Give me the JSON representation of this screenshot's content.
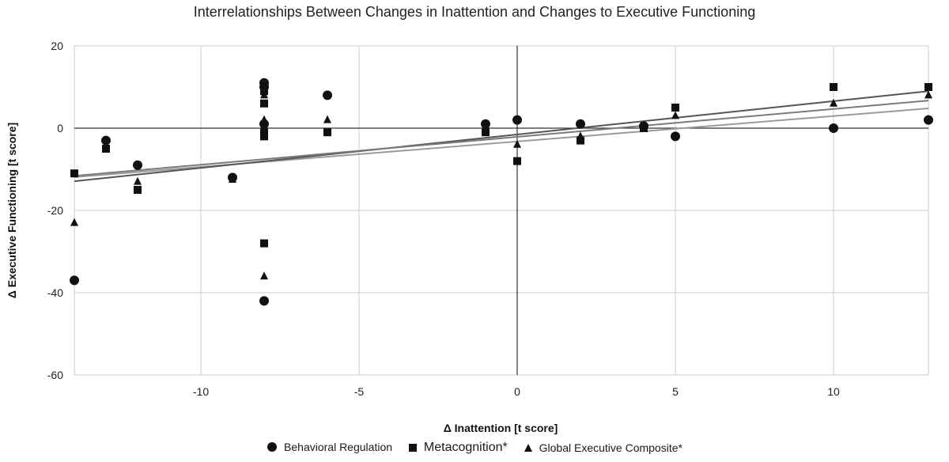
{
  "chart_data": {
    "type": "scatter",
    "title": "Interrelationships Between Changes in Inattention and Changes to Executive Functioning",
    "xlabel": "Δ Inattention [t score]",
    "ylabel": "Δ Executive Functioning [t score]",
    "xlim": [
      -14,
      13
    ],
    "ylim": [
      -60,
      20
    ],
    "xticks": [
      -10,
      -5,
      0,
      5,
      10
    ],
    "yticks": [
      20,
      0,
      -20,
      -40,
      -60
    ],
    "grid": true,
    "legend_position": "bottom",
    "series": [
      {
        "name": "Behavioral Regulation",
        "marker": "circle",
        "color": "#111111",
        "points": [
          [
            -14,
            -37
          ],
          [
            -13,
            -3
          ],
          [
            -12,
            -9
          ],
          [
            -9,
            -12
          ],
          [
            -8,
            11
          ],
          [
            -8,
            10
          ],
          [
            -8,
            1
          ],
          [
            -8,
            -42
          ],
          [
            -6,
            8
          ],
          [
            -1,
            1
          ],
          [
            0,
            2
          ],
          [
            2,
            1
          ],
          [
            4,
            0.5
          ],
          [
            5,
            -2
          ],
          [
            10,
            0
          ],
          [
            13,
            2
          ]
        ],
        "trendline": {
          "y_at_xmin": -11.9,
          "y_at_xmax": 4.8
        }
      },
      {
        "name": "Metacognition*",
        "marker": "square",
        "color": "#111111",
        "points": [
          [
            -14,
            -11
          ],
          [
            -13,
            -5
          ],
          [
            -12,
            -15
          ],
          [
            -8,
            9
          ],
          [
            -8,
            6
          ],
          [
            -8,
            -1
          ],
          [
            -8,
            -2
          ],
          [
            -8,
            -28
          ],
          [
            -6,
            -1
          ],
          [
            -1,
            -1
          ],
          [
            0,
            -8
          ],
          [
            2,
            -3
          ],
          [
            4,
            0
          ],
          [
            5,
            5
          ],
          [
            10,
            10
          ],
          [
            13,
            10
          ]
        ],
        "trendline": {
          "y_at_xmin": -12.9,
          "y_at_xmax": 9.0
        }
      },
      {
        "name": "Global Executive Composite*",
        "marker": "triangle",
        "color": "#111111",
        "points": [
          [
            -14,
            -23
          ],
          [
            -12,
            -13
          ],
          [
            -9,
            -12.5
          ],
          [
            -8,
            8
          ],
          [
            -8,
            2
          ],
          [
            -8,
            -36
          ],
          [
            -6,
            2
          ],
          [
            -1,
            -0.5
          ],
          [
            0,
            -4
          ],
          [
            2,
            -2
          ],
          [
            4,
            0.5
          ],
          [
            5,
            3
          ],
          [
            10,
            6
          ],
          [
            13,
            8
          ]
        ],
        "trendline": {
          "y_at_xmin": -11.6,
          "y_at_xmax": 6.7
        }
      }
    ],
    "trendline_colors": [
      "#9a9a9a",
      "#555555",
      "#7a7a7a"
    ]
  }
}
